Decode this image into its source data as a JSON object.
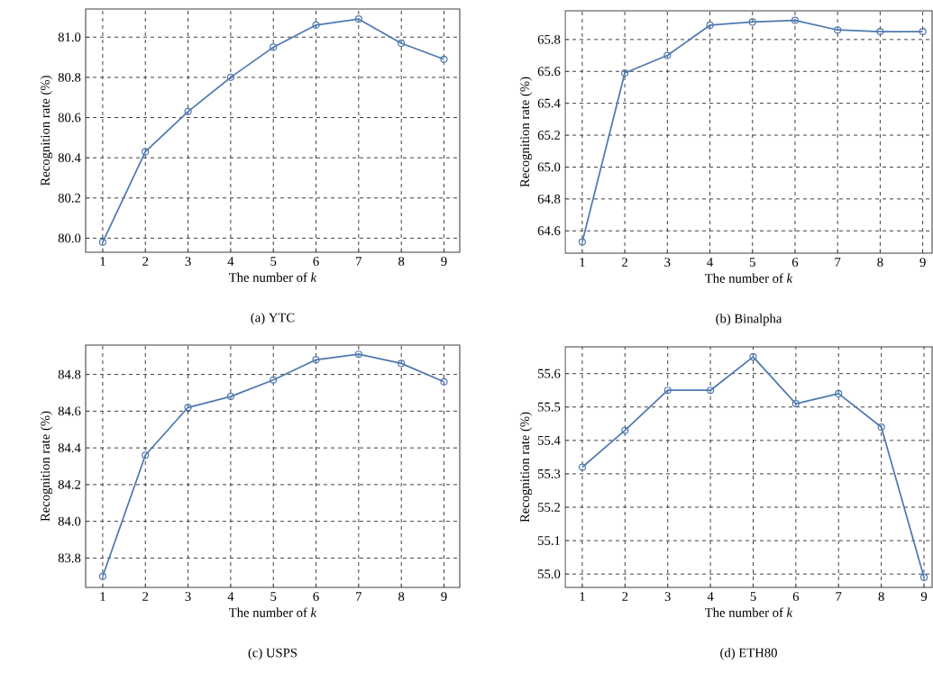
{
  "chart_data": [
    {
      "type": "line",
      "subtitle": "(a) YTC",
      "xlabel": "The number of *k*",
      "ylabel": "Recognition rate (%)",
      "color": "#4e79b0",
      "marker": "circle",
      "line_style": "solid",
      "grid": true,
      "x": [
        1,
        2,
        3,
        4,
        5,
        6,
        7,
        8,
        9
      ],
      "values": [
        79.98,
        80.43,
        80.63,
        80.8,
        80.95,
        81.06,
        81.09,
        80.97,
        80.89
      ],
      "xlim": [
        0.6,
        9.37
      ],
      "ylim": [
        79.93,
        81.14
      ],
      "xticks": [
        1,
        2,
        3,
        4,
        5,
        6,
        7,
        8,
        9
      ],
      "yticks": [
        {
          "value": 80.0,
          "label": "80.0"
        },
        {
          "value": 80.2,
          "label": "80.2"
        },
        {
          "value": 80.4,
          "label": "80.4"
        },
        {
          "value": 80.6,
          "label": "80.6"
        },
        {
          "value": 80.8,
          "label": "80.8"
        },
        {
          "value": 81.0,
          "label": "81.0"
        }
      ]
    },
    {
      "type": "line",
      "subtitle": "(b) Binalpha",
      "xlabel": "The number of *k*",
      "ylabel": "Recognition rate (%)",
      "color": "#4e79b0",
      "marker": "circle",
      "line_style": "solid",
      "grid": true,
      "x": [
        1,
        2,
        3,
        4,
        5,
        6,
        7,
        8,
        9
      ],
      "values": [
        64.53,
        65.59,
        65.7,
        65.89,
        65.91,
        65.92,
        65.86,
        65.85,
        65.85
      ],
      "xlim": [
        0.6,
        9.22
      ],
      "ylim": [
        64.46,
        65.98
      ],
      "xticks": [
        1,
        2,
        3,
        4,
        5,
        6,
        7,
        8,
        9
      ],
      "yticks": [
        {
          "value": 64.6,
          "label": "64.6"
        },
        {
          "value": 64.8,
          "label": "64.8"
        },
        {
          "value": 65.0,
          "label": "65.0"
        },
        {
          "value": 65.2,
          "label": "65.2"
        },
        {
          "value": 65.4,
          "label": "65.4"
        },
        {
          "value": 65.6,
          "label": "65.6"
        },
        {
          "value": 65.8,
          "label": "65.8"
        }
      ]
    },
    {
      "type": "line",
      "subtitle": "(c) USPS",
      "xlabel": "The number of *k*",
      "ylabel": "Recognition rate (%)",
      "color": "#4e79b0",
      "marker": "circle",
      "line_style": "solid",
      "grid": true,
      "x": [
        1,
        2,
        3,
        4,
        5,
        6,
        7,
        8,
        9
      ],
      "values": [
        83.7,
        84.36,
        84.62,
        84.68,
        84.77,
        84.88,
        84.91,
        84.86,
        84.76
      ],
      "xlim": [
        0.6,
        9.37
      ],
      "ylim": [
        83.64,
        84.96
      ],
      "xticks": [
        1,
        2,
        3,
        4,
        5,
        6,
        7,
        8,
        9
      ],
      "yticks": [
        {
          "value": 83.8,
          "label": "83.8"
        },
        {
          "value": 84.0,
          "label": "84.0"
        },
        {
          "value": 84.2,
          "label": "84.2"
        },
        {
          "value": 84.4,
          "label": "84.4"
        },
        {
          "value": 84.6,
          "label": "84.6"
        },
        {
          "value": 84.8,
          "label": "84.8"
        }
      ]
    },
    {
      "type": "line",
      "subtitle": "(d) ETH80",
      "xlabel": "The number of *k*",
      "ylabel": "Recognition rate (%)",
      "color": "#4e79b0",
      "marker": "circle",
      "line_style": "solid",
      "grid": true,
      "x": [
        1,
        2,
        3,
        4,
        5,
        6,
        7,
        8,
        9
      ],
      "values": [
        55.32,
        55.43,
        55.55,
        55.55,
        55.65,
        55.51,
        55.54,
        55.44,
        54.99
      ],
      "xlim": [
        0.6,
        9.19
      ],
      "ylim": [
        54.96,
        55.68
      ],
      "xticks": [
        1,
        2,
        3,
        4,
        5,
        6,
        7,
        8,
        9
      ],
      "yticks": [
        {
          "value": 55.0,
          "label": "55.0"
        },
        {
          "value": 55.1,
          "label": "55.1"
        },
        {
          "value": 55.2,
          "label": "55.2"
        },
        {
          "value": 55.3,
          "label": "55.3"
        },
        {
          "value": 55.4,
          "label": "55.4"
        },
        {
          "value": 55.5,
          "label": "55.5"
        },
        {
          "value": 55.6,
          "label": "55.6"
        }
      ]
    }
  ]
}
